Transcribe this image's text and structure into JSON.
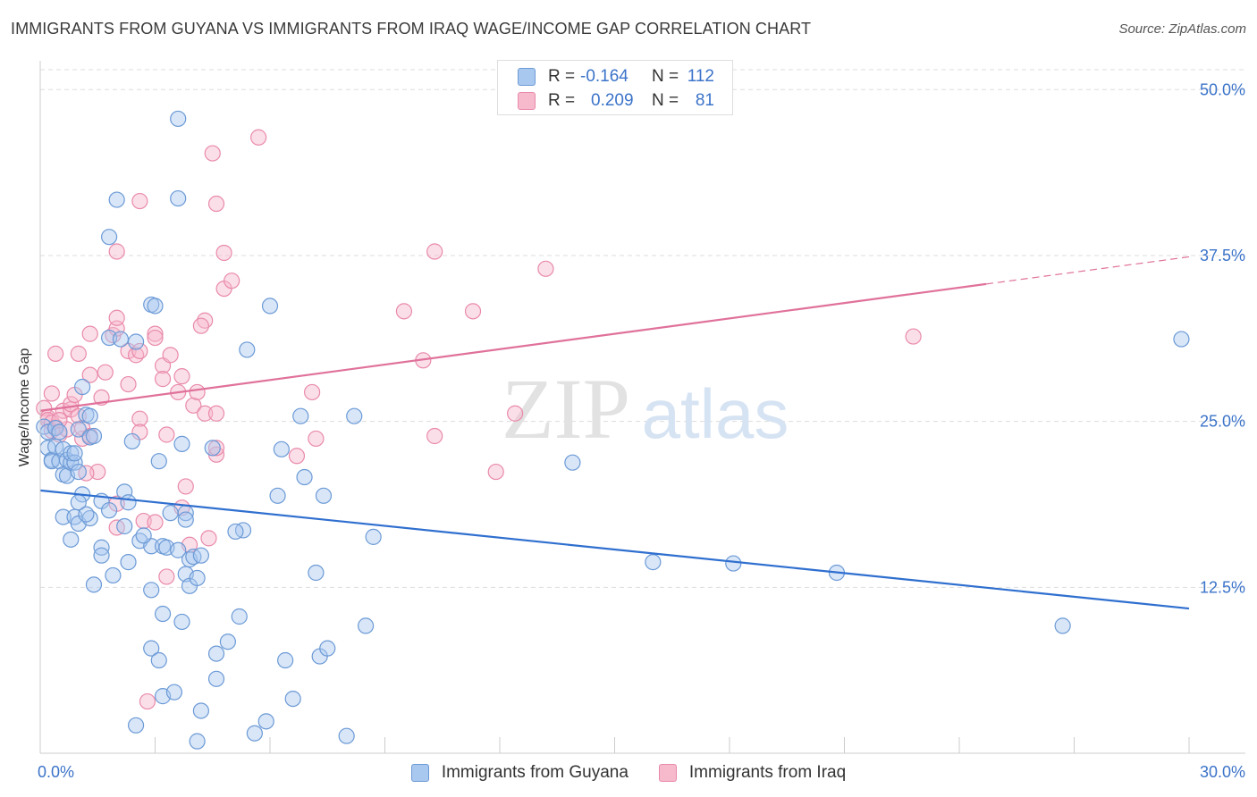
{
  "header": {
    "title": "IMMIGRANTS FROM GUYANA VS IMMIGRANTS FROM IRAQ WAGE/INCOME GAP CORRELATION CHART",
    "source": "Source: ZipAtlas.com"
  },
  "legend": {
    "rows": [
      {
        "r_label": "R =",
        "r_value": "-0.164",
        "n_label": "N =",
        "n_value": "112"
      },
      {
        "r_label": "R =",
        "r_value": "0.209",
        "n_label": "N =",
        "n_value": "81"
      }
    ]
  },
  "watermark": {
    "zip": "ZIP",
    "atlas": "atlas"
  },
  "colors": {
    "guyana_fill": "#a9c8ef",
    "guyana_stroke": "#6c9ad6",
    "guyana_line": "#2f6fcf",
    "iraq_fill": "#f7b9cc",
    "iraq_stroke": "#e98aaa",
    "iraq_line": "#e0719a",
    "axis_text": "#3b73c9",
    "grid": "#dddddd"
  },
  "chart_data": {
    "type": "scatter",
    "title": "IMMIGRANTS FROM GUYANA VS IMMIGRANTS FROM IRAQ WAGE/INCOME GAP CORRELATION CHART",
    "xlabel": "",
    "ylabel": "Wage/Income Gap",
    "xlim": [
      0,
      30
    ],
    "ylim": [
      0,
      51.5
    ],
    "x_tick_labels": [
      "0.0%",
      "30.0%"
    ],
    "y_ticks": [
      12.5,
      25.0,
      37.5,
      50.0
    ],
    "y_tick_labels": [
      "12.5%",
      "25.0%",
      "37.5%",
      "50.0%"
    ],
    "grid": true,
    "series": [
      {
        "name": "Immigrants from Guyana",
        "r": -0.164,
        "n": 112,
        "trend": {
          "x": [
            0,
            30
          ],
          "y": [
            19.8,
            10.9
          ],
          "solid_to": 30
        },
        "points": [
          [
            0.1,
            24.6
          ],
          [
            0.2,
            24.2
          ],
          [
            0.2,
            23.0
          ],
          [
            0.3,
            22.1
          ],
          [
            0.3,
            22.0
          ],
          [
            0.4,
            23.1
          ],
          [
            0.4,
            24.5
          ],
          [
            0.5,
            22.0
          ],
          [
            0.5,
            24.2
          ],
          [
            0.6,
            21.0
          ],
          [
            0.6,
            22.9
          ],
          [
            0.7,
            22.1
          ],
          [
            0.7,
            20.9
          ],
          [
            0.8,
            21.9
          ],
          [
            0.8,
            22.6
          ],
          [
            0.9,
            21.9
          ],
          [
            0.9,
            22.6
          ],
          [
            1.0,
            24.4
          ],
          [
            1.0,
            21.2
          ],
          [
            1.1,
            27.6
          ],
          [
            1.1,
            19.5
          ],
          [
            1.2,
            25.5
          ],
          [
            1.3,
            25.4
          ],
          [
            1.3,
            23.8
          ],
          [
            1.4,
            23.9
          ],
          [
            0.6,
            17.8
          ],
          [
            0.8,
            16.1
          ],
          [
            0.9,
            17.8
          ],
          [
            1.0,
            17.3
          ],
          [
            1.3,
            17.7
          ],
          [
            1.2,
            18.0
          ],
          [
            1.0,
            18.9
          ],
          [
            1.6,
            19.0
          ],
          [
            1.8,
            18.3
          ],
          [
            1.6,
            15.5
          ],
          [
            2.2,
            19.7
          ],
          [
            2.3,
            18.9
          ],
          [
            2.2,
            17.1
          ],
          [
            2.6,
            16.0
          ],
          [
            2.9,
            15.6
          ],
          [
            2.7,
            16.4
          ],
          [
            3.2,
            15.6
          ],
          [
            3.3,
            15.5
          ],
          [
            3.4,
            18.1
          ],
          [
            3.8,
            18.1
          ],
          [
            3.8,
            17.6
          ],
          [
            3.6,
            15.3
          ],
          [
            3.9,
            14.6
          ],
          [
            4.0,
            14.8
          ],
          [
            2.3,
            14.4
          ],
          [
            1.6,
            14.9
          ],
          [
            1.9,
            13.4
          ],
          [
            1.4,
            12.7
          ],
          [
            2.9,
            12.3
          ],
          [
            3.8,
            13.5
          ],
          [
            3.9,
            12.6
          ],
          [
            4.1,
            13.2
          ],
          [
            3.2,
            10.5
          ],
          [
            3.7,
            9.9
          ],
          [
            5.3,
            16.8
          ],
          [
            5.2,
            10.3
          ],
          [
            5.1,
            16.7
          ],
          [
            4.2,
            14.9
          ],
          [
            2.9,
            7.9
          ],
          [
            3.1,
            7.0
          ],
          [
            4.6,
            5.6
          ],
          [
            3.2,
            4.3
          ],
          [
            3.5,
            4.6
          ],
          [
            4.9,
            8.4
          ],
          [
            4.6,
            7.5
          ],
          [
            4.2,
            3.2
          ],
          [
            2.5,
            2.1
          ],
          [
            4.1,
            0.9
          ],
          [
            5.6,
            1.5
          ],
          [
            5.9,
            2.4
          ],
          [
            6.6,
            4.1
          ],
          [
            6.4,
            7.0
          ],
          [
            7.3,
            7.3
          ],
          [
            7.5,
            7.9
          ],
          [
            8.0,
            1.3
          ],
          [
            8.5,
            9.6
          ],
          [
            7.2,
            13.6
          ],
          [
            8.7,
            16.3
          ],
          [
            7.4,
            19.4
          ],
          [
            6.2,
            19.4
          ],
          [
            6.3,
            22.9
          ],
          [
            6.9,
            20.8
          ],
          [
            6.8,
            25.4
          ],
          [
            8.2,
            25.4
          ],
          [
            5.4,
            30.4
          ],
          [
            6.0,
            33.7
          ],
          [
            2.9,
            33.8
          ],
          [
            3.0,
            33.7
          ],
          [
            1.8,
            31.3
          ],
          [
            2.1,
            31.2
          ],
          [
            2.5,
            31.0
          ],
          [
            1.8,
            38.9
          ],
          [
            2.0,
            41.7
          ],
          [
            3.6,
            41.8
          ],
          [
            3.6,
            47.8
          ],
          [
            3.1,
            22.0
          ],
          [
            3.7,
            23.3
          ],
          [
            4.5,
            23.0
          ],
          [
            2.4,
            23.5
          ],
          [
            13.9,
            21.9
          ],
          [
            16.0,
            14.4
          ],
          [
            18.1,
            14.3
          ],
          [
            20.8,
            13.6
          ],
          [
            26.7,
            9.6
          ],
          [
            29.8,
            31.2
          ]
        ]
      },
      {
        "name": "Immigrants from Iraq",
        "r": 0.209,
        "n": 81,
        "trend": {
          "x": [
            0,
            30
          ],
          "y": [
            25.8,
            37.4
          ],
          "solid_to": 24.7
        },
        "points": [
          [
            0.1,
            26.0
          ],
          [
            0.2,
            25.3
          ],
          [
            0.2,
            25.1
          ],
          [
            0.3,
            24.3
          ],
          [
            0.4,
            24.6
          ],
          [
            0.5,
            24.0
          ],
          [
            0.6,
            25.8
          ],
          [
            0.7,
            24.4
          ],
          [
            0.8,
            25.9
          ],
          [
            0.8,
            26.3
          ],
          [
            0.9,
            27.0
          ],
          [
            1.0,
            25.4
          ],
          [
            1.1,
            23.7
          ],
          [
            1.1,
            24.5
          ],
          [
            0.3,
            27.1
          ],
          [
            0.4,
            30.1
          ],
          [
            1.0,
            30.1
          ],
          [
            1.3,
            28.5
          ],
          [
            1.3,
            23.9
          ],
          [
            1.6,
            26.8
          ],
          [
            1.7,
            28.7
          ],
          [
            1.5,
            21.2
          ],
          [
            1.9,
            31.5
          ],
          [
            2.0,
            32.0
          ],
          [
            2.0,
            32.8
          ],
          [
            1.3,
            31.6
          ],
          [
            2.3,
            30.3
          ],
          [
            2.3,
            27.8
          ],
          [
            2.5,
            30.0
          ],
          [
            2.6,
            30.3
          ],
          [
            3.0,
            31.6
          ],
          [
            3.0,
            31.3
          ],
          [
            3.2,
            29.2
          ],
          [
            3.2,
            28.2
          ],
          [
            3.4,
            30.0
          ],
          [
            3.6,
            27.2
          ],
          [
            2.6,
            25.2
          ],
          [
            2.6,
            24.2
          ],
          [
            3.3,
            24.0
          ],
          [
            4.0,
            26.2
          ],
          [
            4.3,
            25.6
          ],
          [
            4.6,
            25.6
          ],
          [
            4.3,
            32.6
          ],
          [
            4.2,
            32.2
          ],
          [
            4.8,
            35.0
          ],
          [
            5.0,
            35.6
          ],
          [
            4.8,
            37.7
          ],
          [
            4.6,
            41.4
          ],
          [
            4.5,
            45.2
          ],
          [
            5.7,
            46.4
          ],
          [
            2.0,
            37.8
          ],
          [
            2.6,
            41.6
          ],
          [
            4.1,
            27.2
          ],
          [
            2.0,
            17.0
          ],
          [
            2.7,
            17.5
          ],
          [
            3.0,
            17.4
          ],
          [
            3.7,
            18.5
          ],
          [
            3.8,
            20.1
          ],
          [
            4.4,
            16.2
          ],
          [
            4.6,
            22.5
          ],
          [
            4.6,
            23.0
          ],
          [
            7.1,
            27.2
          ],
          [
            7.2,
            23.7
          ],
          [
            6.7,
            22.4
          ],
          [
            3.9,
            15.7
          ],
          [
            3.3,
            13.3
          ],
          [
            2.8,
            3.9
          ],
          [
            9.5,
            33.3
          ],
          [
            10.0,
            29.6
          ],
          [
            10.3,
            23.9
          ],
          [
            10.3,
            37.8
          ],
          [
            11.3,
            33.3
          ],
          [
            11.9,
            21.2
          ],
          [
            12.4,
            25.6
          ],
          [
            13.2,
            36.5
          ],
          [
            22.8,
            31.4
          ],
          [
            3.7,
            28.4
          ],
          [
            1.2,
            21.1
          ],
          [
            0.3,
            24.9
          ],
          [
            0.5,
            25.1
          ],
          [
            2.0,
            18.8
          ]
        ]
      }
    ]
  },
  "bottom_legend": {
    "items": [
      {
        "label": "Immigrants from Guyana"
      },
      {
        "label": "Immigrants from Iraq"
      }
    ]
  }
}
